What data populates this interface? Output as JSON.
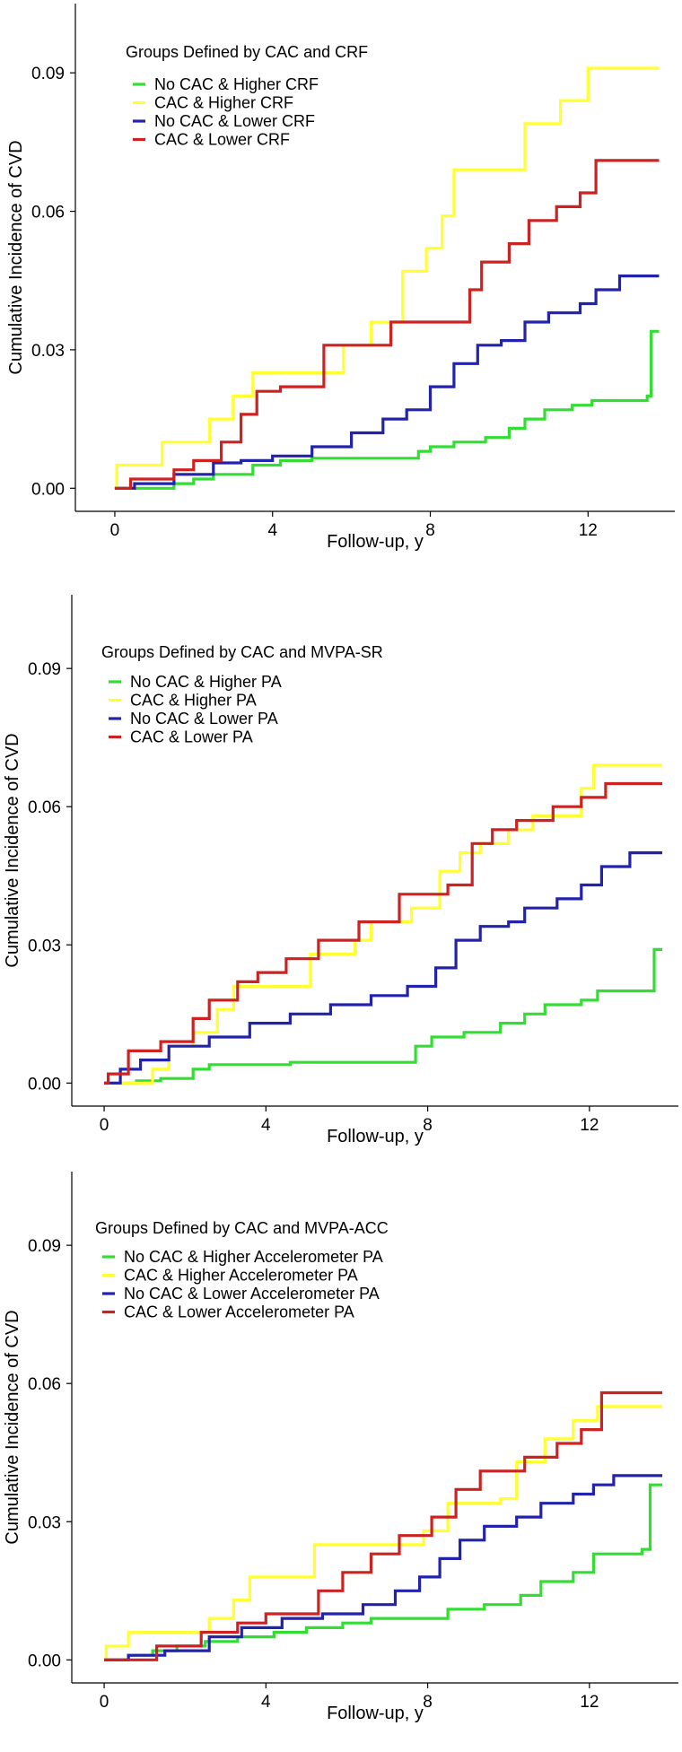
{
  "chart_data": [
    {
      "type": "line",
      "step": true,
      "legend_title": "Groups Defined by CAC and CRF",
      "xlabel": "Follow-up, y",
      "ylabel": "Cumulative Incidence of CVD",
      "xlim": [
        -1,
        14.2
      ],
      "ylim": [
        -0.005,
        0.105
      ],
      "xticks": [
        0,
        4,
        8,
        12
      ],
      "yticks": [
        0.0,
        0.03,
        0.06,
        0.09
      ],
      "ytick_labels": [
        "0.00",
        "0.03",
        "0.06",
        "0.09"
      ],
      "legend_position": "top-left",
      "series": [
        {
          "name": "No CAC & Higher CRF",
          "color": "#33dd33",
          "points": [
            [
              0,
              0
            ],
            [
              0.9,
              0
            ],
            [
              1.5,
              0.001
            ],
            [
              2,
              0.002
            ],
            [
              2.5,
              0.003
            ],
            [
              3.5,
              0.005
            ],
            [
              4.2,
              0.006
            ],
            [
              5,
              0.0065
            ],
            [
              6,
              0.0065
            ],
            [
              7.3,
              0.0065
            ],
            [
              7.7,
              0.008
            ],
            [
              8,
              0.009
            ],
            [
              8.6,
              0.01
            ],
            [
              9.4,
              0.011
            ],
            [
              10,
              0.013
            ],
            [
              10.4,
              0.015
            ],
            [
              10.9,
              0.017
            ],
            [
              11.6,
              0.018
            ],
            [
              12.1,
              0.019
            ],
            [
              13.5,
              0.02
            ],
            [
              13.6,
              0.034
            ],
            [
              13.8,
              0.034
            ]
          ]
        },
        {
          "name": "CAC & Higher CRF",
          "color": "#ffff33",
          "points": [
            [
              0,
              0
            ],
            [
              0.05,
              0.005
            ],
            [
              1.2,
              0.01
            ],
            [
              2.4,
              0.015
            ],
            [
              3,
              0.02
            ],
            [
              3.5,
              0.025
            ],
            [
              5.8,
              0.031
            ],
            [
              6.5,
              0.036
            ],
            [
              7.3,
              0.047
            ],
            [
              7.9,
              0.052
            ],
            [
              8.3,
              0.059
            ],
            [
              8.6,
              0.069
            ],
            [
              9.8,
              0.069
            ],
            [
              10.4,
              0.079
            ],
            [
              11.3,
              0.084
            ],
            [
              12,
              0.091
            ],
            [
              13.8,
              0.091
            ]
          ]
        },
        {
          "name": "No CAC & Lower CRF",
          "color": "#2222aa",
          "points": [
            [
              0,
              0
            ],
            [
              0.5,
              0.001
            ],
            [
              1.5,
              0.003
            ],
            [
              2.5,
              0.0055
            ],
            [
              3.2,
              0.006
            ],
            [
              4,
              0.007
            ],
            [
              5,
              0.009
            ],
            [
              6,
              0.012
            ],
            [
              6.8,
              0.015
            ],
            [
              7.4,
              0.017
            ],
            [
              8,
              0.022
            ],
            [
              8.6,
              0.027
            ],
            [
              9.2,
              0.031
            ],
            [
              9.8,
              0.032
            ],
            [
              10.4,
              0.036
            ],
            [
              11,
              0.038
            ],
            [
              11.8,
              0.04
            ],
            [
              12.2,
              0.043
            ],
            [
              12.8,
              0.046
            ],
            [
              13.8,
              0.046
            ]
          ]
        },
        {
          "name": "CAC & Lower CRF",
          "color": "#cc2222",
          "points": [
            [
              0,
              0
            ],
            [
              0.4,
              0.002
            ],
            [
              1.5,
              0.004
            ],
            [
              2,
              0.006
            ],
            [
              2.7,
              0.01
            ],
            [
              3.2,
              0.016
            ],
            [
              3.6,
              0.021
            ],
            [
              4.2,
              0.022
            ],
            [
              5.3,
              0.031
            ],
            [
              6.6,
              0.031
            ],
            [
              7,
              0.036
            ],
            [
              8.8,
              0.036
            ],
            [
              9,
              0.043
            ],
            [
              9.3,
              0.049
            ],
            [
              10,
              0.053
            ],
            [
              10.5,
              0.058
            ],
            [
              11.2,
              0.061
            ],
            [
              11.8,
              0.064
            ],
            [
              12.2,
              0.071
            ],
            [
              13.8,
              0.071
            ]
          ]
        }
      ]
    },
    {
      "type": "line",
      "step": true,
      "legend_title": "Groups Defined by CAC and MVPA-SR",
      "xlabel": "Follow-up, y",
      "ylabel": "Cumulative Incidence of CVD",
      "xlim": [
        -0.8,
        14.2
      ],
      "ylim": [
        -0.005,
        0.106
      ],
      "xticks": [
        0,
        4,
        8,
        12
      ],
      "yticks": [
        0.0,
        0.03,
        0.06,
        0.09
      ],
      "ytick_labels": [
        "0.00",
        "0.03",
        "0.06",
        "0.09"
      ],
      "legend_position": "top-left",
      "series": [
        {
          "name": "No CAC & Higher PA",
          "color": "#33dd33",
          "points": [
            [
              0,
              0
            ],
            [
              0.8,
              0.0005
            ],
            [
              1.4,
              0.001
            ],
            [
              2.2,
              0.003
            ],
            [
              2.6,
              0.004
            ],
            [
              4.6,
              0.0045
            ],
            [
              7.3,
              0.0045
            ],
            [
              7.7,
              0.008
            ],
            [
              8.1,
              0.01
            ],
            [
              8.9,
              0.011
            ],
            [
              9.8,
              0.013
            ],
            [
              10.4,
              0.015
            ],
            [
              10.9,
              0.017
            ],
            [
              11.8,
              0.018
            ],
            [
              12.2,
              0.02
            ],
            [
              13.4,
              0.02
            ],
            [
              13.6,
              0.029
            ],
            [
              13.8,
              0.029
            ]
          ]
        },
        {
          "name": "CAC & Higher PA",
          "color": "#ffff33",
          "points": [
            [
              0,
              0
            ],
            [
              1.2,
              0.003
            ],
            [
              1.6,
              0.008
            ],
            [
              2.2,
              0.011
            ],
            [
              2.8,
              0.016
            ],
            [
              3.2,
              0.021
            ],
            [
              5.1,
              0.028
            ],
            [
              6.2,
              0.031
            ],
            [
              6.6,
              0.035
            ],
            [
              7.6,
              0.038
            ],
            [
              8.3,
              0.046
            ],
            [
              8.8,
              0.05
            ],
            [
              9.3,
              0.052
            ],
            [
              10,
              0.055
            ],
            [
              10.6,
              0.058
            ],
            [
              11.8,
              0.064
            ],
            [
              12.1,
              0.069
            ],
            [
              13.8,
              0.069
            ]
          ]
        },
        {
          "name": "No CAC & Lower PA",
          "color": "#2222aa",
          "points": [
            [
              0,
              0
            ],
            [
              0.4,
              0.003
            ],
            [
              0.9,
              0.005
            ],
            [
              1.6,
              0.008
            ],
            [
              2.6,
              0.01
            ],
            [
              3.6,
              0.013
            ],
            [
              4.6,
              0.015
            ],
            [
              5.6,
              0.017
            ],
            [
              6.6,
              0.019
            ],
            [
              7.5,
              0.021
            ],
            [
              8.2,
              0.025
            ],
            [
              8.7,
              0.031
            ],
            [
              9.3,
              0.034
            ],
            [
              10,
              0.035
            ],
            [
              10.4,
              0.038
            ],
            [
              11.2,
              0.04
            ],
            [
              11.8,
              0.043
            ],
            [
              12.3,
              0.047
            ],
            [
              13,
              0.05
            ],
            [
              13.8,
              0.05
            ]
          ]
        },
        {
          "name": "CAC & Lower PA",
          "color": "#cc2222",
          "points": [
            [
              0,
              0
            ],
            [
              0.1,
              0.002
            ],
            [
              0.6,
              0.007
            ],
            [
              1.4,
              0.009
            ],
            [
              2.2,
              0.014
            ],
            [
              2.6,
              0.018
            ],
            [
              3.3,
              0.022
            ],
            [
              3.8,
              0.024
            ],
            [
              4.5,
              0.027
            ],
            [
              5.3,
              0.031
            ],
            [
              6.3,
              0.035
            ],
            [
              7.3,
              0.041
            ],
            [
              8.5,
              0.043
            ],
            [
              9.1,
              0.052
            ],
            [
              9.6,
              0.055
            ],
            [
              10.2,
              0.057
            ],
            [
              11.1,
              0.06
            ],
            [
              11.8,
              0.062
            ],
            [
              12.4,
              0.065
            ],
            [
              13.8,
              0.065
            ]
          ]
        }
      ]
    },
    {
      "type": "line",
      "step": true,
      "legend_title": "Groups Defined by CAC and MVPA-ACC",
      "xlabel": "Follow-up, y",
      "ylabel": "Cumulative Incidence of CVD",
      "xlim": [
        -0.8,
        14.2
      ],
      "ylim": [
        -0.005,
        0.106
      ],
      "xticks": [
        0,
        4,
        8,
        12
      ],
      "yticks": [
        0.0,
        0.03,
        0.06,
        0.09
      ],
      "ytick_labels": [
        "0.00",
        "0.03",
        "0.06",
        "0.09"
      ],
      "legend_position": "top-left",
      "series": [
        {
          "name": "No CAC & Higher Accelerometer PA",
          "color": "#33dd33",
          "points": [
            [
              0,
              0
            ],
            [
              0.6,
              0.001
            ],
            [
              1.2,
              0.002
            ],
            [
              1.8,
              0.003
            ],
            [
              2.5,
              0.004
            ],
            [
              3.3,
              0.005
            ],
            [
              4.2,
              0.006
            ],
            [
              5,
              0.007
            ],
            [
              5.9,
              0.008
            ],
            [
              6.6,
              0.009
            ],
            [
              8,
              0.009
            ],
            [
              8.5,
              0.011
            ],
            [
              9.4,
              0.012
            ],
            [
              10.3,
              0.014
            ],
            [
              10.8,
              0.017
            ],
            [
              11.6,
              0.019
            ],
            [
              12.1,
              0.023
            ],
            [
              13.3,
              0.024
            ],
            [
              13.5,
              0.038
            ],
            [
              13.8,
              0.038
            ]
          ]
        },
        {
          "name": "CAC & Higher Accelerometer PA",
          "color": "#ffff33",
          "points": [
            [
              0,
              0
            ],
            [
              0.05,
              0.003
            ],
            [
              0.6,
              0.006
            ],
            [
              2.6,
              0.009
            ],
            [
              3.2,
              0.013
            ],
            [
              3.6,
              0.018
            ],
            [
              5.2,
              0.025
            ],
            [
              7.9,
              0.028
            ],
            [
              8.5,
              0.034
            ],
            [
              9.8,
              0.035
            ],
            [
              10.2,
              0.043
            ],
            [
              10.9,
              0.048
            ],
            [
              11.6,
              0.052
            ],
            [
              12.2,
              0.055
            ],
            [
              13.8,
              0.055
            ]
          ]
        },
        {
          "name": "No CAC & Lower Accelerometer PA",
          "color": "#2222aa",
          "points": [
            [
              0,
              0
            ],
            [
              0.6,
              0.001
            ],
            [
              1.5,
              0.002
            ],
            [
              2.6,
              0.005
            ],
            [
              3.4,
              0.007
            ],
            [
              4.4,
              0.009
            ],
            [
              5.4,
              0.01
            ],
            [
              6.4,
              0.012
            ],
            [
              7.2,
              0.015
            ],
            [
              7.8,
              0.018
            ],
            [
              8.3,
              0.022
            ],
            [
              8.8,
              0.026
            ],
            [
              9.4,
              0.029
            ],
            [
              10.2,
              0.031
            ],
            [
              10.8,
              0.034
            ],
            [
              11.6,
              0.036
            ],
            [
              12.1,
              0.038
            ],
            [
              12.6,
              0.04
            ],
            [
              13.8,
              0.04
            ]
          ]
        },
        {
          "name": "CAC & Lower Accelerometer PA",
          "color": "#cc2222",
          "points": [
            [
              0,
              0
            ],
            [
              1.3,
              0.003
            ],
            [
              2.4,
              0.006
            ],
            [
              3.3,
              0.008
            ],
            [
              4,
              0.01
            ],
            [
              5.3,
              0.015
            ],
            [
              5.9,
              0.019
            ],
            [
              6.6,
              0.023
            ],
            [
              7.3,
              0.027
            ],
            [
              8.1,
              0.031
            ],
            [
              8.7,
              0.037
            ],
            [
              9.3,
              0.041
            ],
            [
              10.4,
              0.044
            ],
            [
              11.2,
              0.047
            ],
            [
              11.8,
              0.05
            ],
            [
              12.3,
              0.058
            ],
            [
              13.8,
              0.058
            ]
          ]
        }
      ]
    }
  ]
}
